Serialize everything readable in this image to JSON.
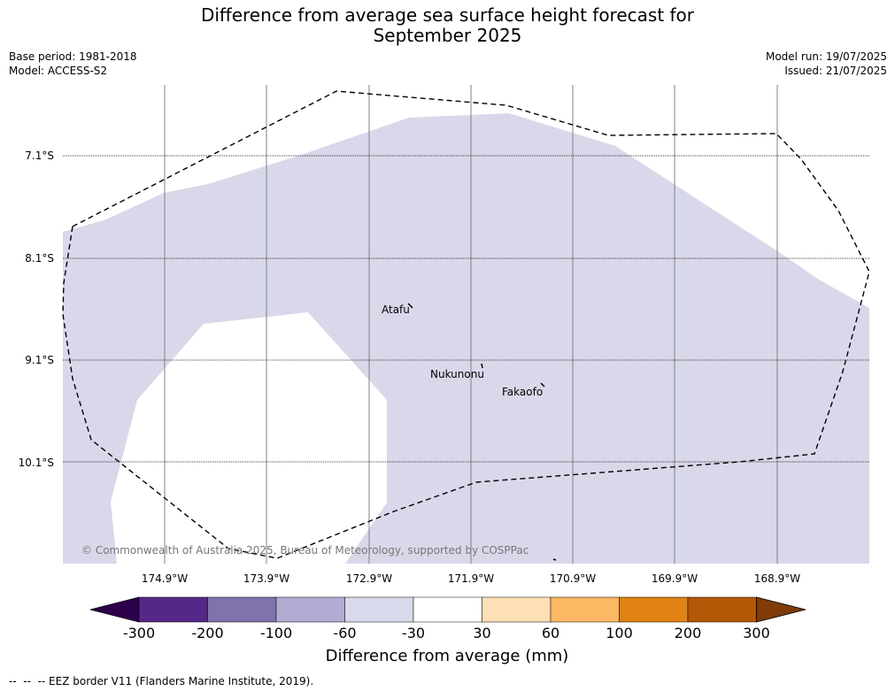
{
  "title_line1": "Difference from average sea surface height forecast for",
  "title_line2": "September 2025",
  "meta": {
    "base_period": "Base period: 1981-2018",
    "model": "Model: ACCESS-S2",
    "model_run": "Model run: 19/07/2025",
    "issued": "Issued: 21/07/2025"
  },
  "map": {
    "latitudes": [
      "7.1°S",
      "8.1°S",
      "9.1°S",
      "10.1°S"
    ],
    "longitudes": [
      "174.9°W",
      "173.9°W",
      "172.9°W",
      "171.9°W",
      "170.9°W",
      "169.9°W",
      "168.9°W"
    ],
    "places": [
      {
        "name": "Atafu",
        "lon": -172.51,
        "lat": -8.56
      },
      {
        "name": "Nukunonu",
        "lon": -171.84,
        "lat": -9.17
      },
      {
        "name": "Fakaofo",
        "lon": -171.22,
        "lat": -9.37
      }
    ],
    "copyright": "© Commonwealth of Australia 2025, Bureau of Meteorology, supported by COSPPac",
    "shading_color": "#d8d8ea",
    "shaded_class": "-60 to -30"
  },
  "colorbar": {
    "ticks": [
      "-300",
      "-200",
      "-100",
      "-60",
      "-30",
      "30",
      "60",
      "100",
      "200",
      "300"
    ],
    "colors": [
      "#2d004b",
      "#542788",
      "#8073ac",
      "#b2abd2",
      "#d8daeb",
      "#ffffff",
      "#fee0b6",
      "#fdb863",
      "#e08214",
      "#b35806",
      "#7f3b08"
    ],
    "label": "Difference from average (mm)"
  },
  "footer": "--  --  -- EEZ border V11 (Flanders Marine Institute, 2019)."
}
